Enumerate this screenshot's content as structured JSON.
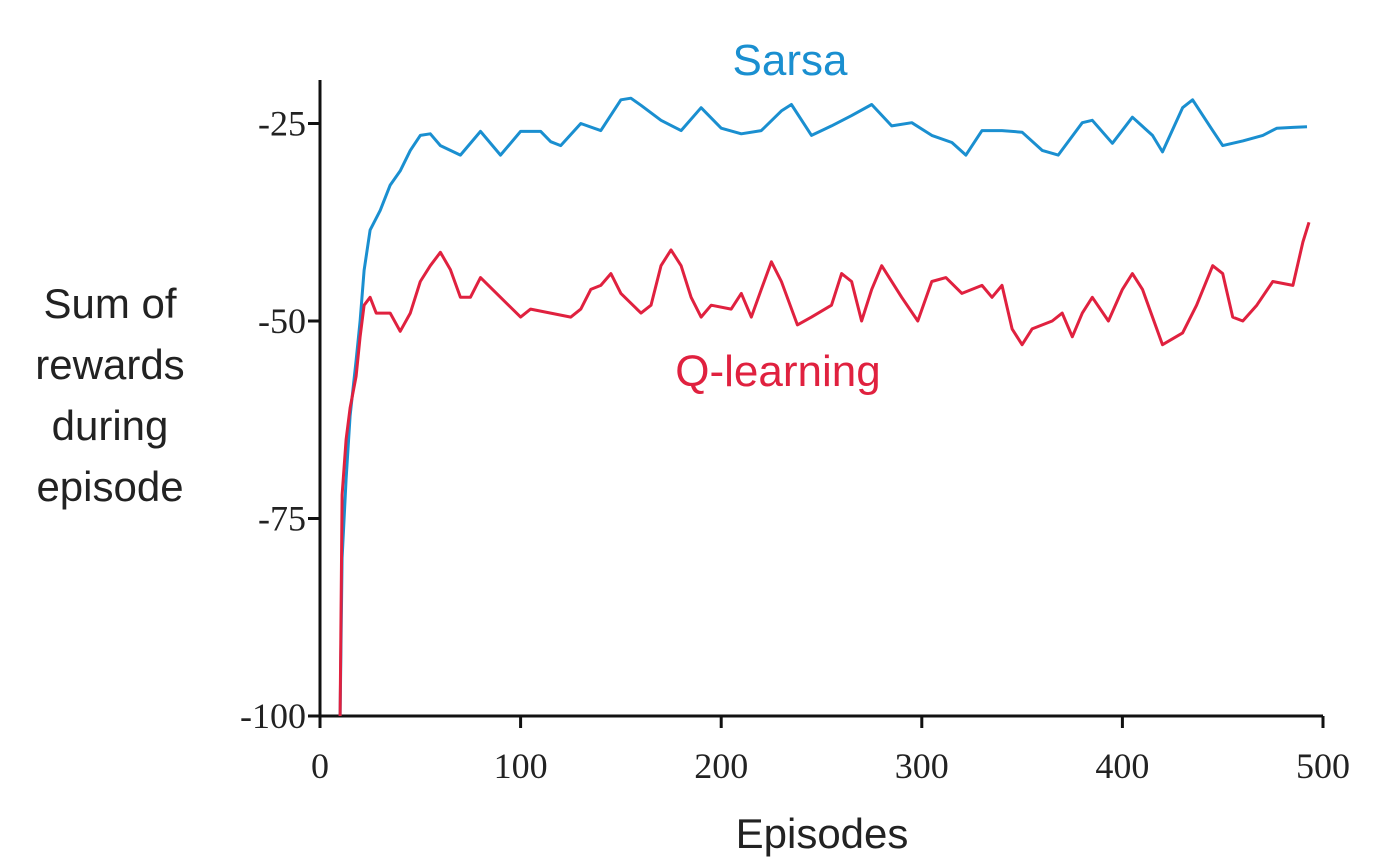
{
  "chart_data": {
    "type": "line",
    "xlabel": "Episodes",
    "ylabel": [
      "Sum of",
      "rewards",
      "during",
      "episode"
    ],
    "xlim": [
      0,
      500
    ],
    "ylim": [
      -100,
      -20
    ],
    "xticks": [
      0,
      100,
      200,
      300,
      400,
      500
    ],
    "yticks": [
      -100,
      -75,
      -50,
      -25
    ],
    "series": [
      {
        "name": "Sarsa",
        "color": "#1a8fd0",
        "x": [
          10,
          11,
          13,
          15,
          18,
          20,
          22,
          25,
          30,
          35,
          40,
          45,
          50,
          55,
          60,
          70,
          80,
          90,
          100,
          110,
          115,
          120,
          130,
          140,
          150,
          155,
          160,
          170,
          180,
          190,
          200,
          210,
          220,
          230,
          235,
          245,
          255,
          265,
          275,
          285,
          295,
          305,
          315,
          322,
          330,
          340,
          350,
          360,
          368,
          380,
          385,
          395,
          405,
          415,
          420,
          430,
          435,
          445,
          450,
          460,
          470,
          477,
          485,
          492
        ],
        "values": [
          -100,
          -80,
          -70,
          -62,
          -55,
          -50,
          -43.6,
          -38.5,
          -36,
          -32.8,
          -31,
          -28.4,
          -26.5,
          -26.3,
          -27.8,
          -29,
          -26,
          -29,
          -26,
          -26,
          -27.3,
          -27.8,
          -25,
          -25.9,
          -22,
          -21.8,
          -22.7,
          -24.6,
          -25.9,
          -23,
          -25.6,
          -26.3,
          -25.9,
          -23.4,
          -22.6,
          -26.5,
          -25.3,
          -24,
          -22.6,
          -25.3,
          -24.9,
          -26.5,
          -27.4,
          -29,
          -25.9,
          -25.9,
          -26.1,
          -28.4,
          -29,
          -24.9,
          -24.6,
          -27.5,
          -24.2,
          -26.5,
          -28.6,
          -23,
          -22,
          -25.9,
          -27.8,
          -27.2,
          -26.5,
          -25.6,
          -25.5,
          -25.4
        ]
      },
      {
        "name": "Q-learning",
        "color": "#e0213f",
        "x": [
          10,
          11,
          13,
          15,
          18,
          20,
          22,
          25,
          28,
          35,
          40,
          45,
          50,
          55,
          60,
          65,
          70,
          75,
          80,
          90,
          100,
          105,
          115,
          125,
          130,
          135,
          140,
          145,
          150,
          160,
          165,
          170,
          175,
          180,
          185,
          190,
          195,
          205,
          210,
          215,
          220,
          225,
          230,
          238,
          245,
          255,
          260,
          265,
          270,
          275,
          280,
          290,
          298,
          305,
          312,
          320,
          330,
          335,
          340,
          345,
          350,
          355,
          365,
          370,
          375,
          380,
          385,
          393,
          400,
          405,
          410,
          420,
          430,
          437,
          445,
          450,
          455,
          460,
          467,
          475,
          485,
          490,
          493
        ],
        "values": [
          -100,
          -72,
          -65,
          -61,
          -57,
          -52,
          -48,
          -47,
          -49,
          -49,
          -51.3,
          -49,
          -45,
          -43,
          -41.3,
          -43.5,
          -47,
          -47,
          -44.5,
          -47,
          -49.5,
          -48.5,
          -49,
          -49.5,
          -48.5,
          -46,
          -45.5,
          -44,
          -46.5,
          -49,
          -48,
          -43,
          -41,
          -43,
          -47,
          -49.5,
          -48,
          -48.5,
          -46.5,
          -49.5,
          -46,
          -42.5,
          -45,
          -50.5,
          -49.5,
          -48,
          -44,
          -45,
          -50,
          -46,
          -43,
          -47,
          -50,
          -45,
          -44.5,
          -46.5,
          -45.5,
          -47,
          -45.5,
          -51,
          -53,
          -51,
          -50,
          -49,
          -52,
          -49,
          -47,
          -50,
          -46,
          -44,
          -46,
          -53,
          -51.5,
          -48,
          -43,
          -44,
          -49.5,
          -50,
          -48,
          -45,
          -45.5,
          -40,
          -37.5
        ]
      }
    ]
  }
}
